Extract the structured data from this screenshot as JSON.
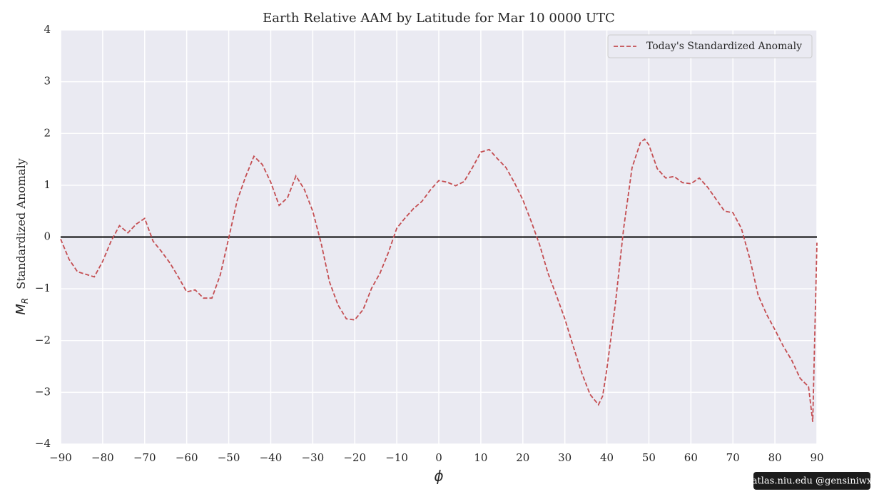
{
  "chart_data": {
    "type": "line",
    "title": "Earth Relative AAM by Latitude for Mar 10 0000 UTC",
    "xlabel": "ϕ",
    "ylabel_symbol": "M",
    "ylabel_subscript": "R",
    "ylabel": "Standardized Anomaly",
    "watermark": "atlas.niu.edu  @gensiniwx",
    "x": [
      -90,
      -88,
      -86,
      -84,
      -82,
      -80,
      -78,
      -76,
      -74,
      -72,
      -70,
      -68,
      -66,
      -64,
      -62,
      -60,
      -58,
      -56,
      -54,
      -52,
      -50,
      -48,
      -46,
      -44,
      -42,
      -40,
      -38,
      -36,
      -34,
      -32,
      -30,
      -28,
      -26,
      -24,
      -22,
      -20,
      -18,
      -16,
      -14,
      -12,
      -10,
      -8,
      -6,
      -4,
      -2,
      0,
      2,
      4,
      6,
      8,
      10,
      12,
      14,
      16,
      18,
      20,
      22,
      24,
      26,
      28,
      30,
      32,
      34,
      36,
      38,
      39,
      40,
      42,
      44,
      46,
      48,
      49,
      50,
      52,
      54,
      56,
      58,
      60,
      62,
      64,
      66,
      68,
      70,
      72,
      74,
      76,
      78,
      80,
      82,
      84,
      86,
      88,
      89,
      90
    ],
    "series": [
      {
        "name": "Today's Standardized Anomaly",
        "color": "#c44e52",
        "dashed": true,
        "values": [
          -0.04,
          -0.43,
          -0.67,
          -0.72,
          -0.77,
          -0.47,
          -0.08,
          0.22,
          0.08,
          0.25,
          0.36,
          -0.08,
          -0.28,
          -0.5,
          -0.77,
          -1.06,
          -1.02,
          -1.18,
          -1.18,
          -0.73,
          -0.02,
          0.7,
          1.16,
          1.56,
          1.4,
          1.06,
          0.61,
          0.76,
          1.18,
          0.92,
          0.5,
          -0.12,
          -0.87,
          -1.31,
          -1.58,
          -1.6,
          -1.4,
          -0.99,
          -0.7,
          -0.3,
          0.17,
          0.37,
          0.55,
          0.69,
          0.91,
          1.09,
          1.06,
          0.99,
          1.07,
          1.34,
          1.64,
          1.69,
          1.51,
          1.34,
          1.05,
          0.72,
          0.3,
          -0.15,
          -0.7,
          -1.13,
          -1.58,
          -2.11,
          -2.62,
          -3.04,
          -3.24,
          -3.07,
          -2.55,
          -1.31,
          0.17,
          1.34,
          1.83,
          1.89,
          1.78,
          1.32,
          1.14,
          1.17,
          1.05,
          1.03,
          1.14,
          0.96,
          0.73,
          0.5,
          0.47,
          0.17,
          -0.41,
          -1.12,
          -1.49,
          -1.79,
          -2.11,
          -2.38,
          -2.73,
          -2.89,
          -3.57,
          -0.11
        ]
      }
    ],
    "hline": 0,
    "hline_color": "#000000",
    "xlim": [
      -90,
      90
    ],
    "ylim": [
      -4,
      4
    ],
    "xticks": [
      {
        "value": -90,
        "label": "−90"
      },
      {
        "value": -80,
        "label": "−80"
      },
      {
        "value": -70,
        "label": "−70"
      },
      {
        "value": -60,
        "label": "−60"
      },
      {
        "value": -50,
        "label": "−50"
      },
      {
        "value": -40,
        "label": "−40"
      },
      {
        "value": -30,
        "label": "−30"
      },
      {
        "value": -20,
        "label": "−20"
      },
      {
        "value": -10,
        "label": "−10"
      },
      0,
      10,
      20,
      30,
      40,
      50,
      60,
      70,
      80,
      90
    ],
    "yticks": [
      {
        "value": -4,
        "label": "−4"
      },
      {
        "value": -3,
        "label": "−3"
      },
      {
        "value": -2,
        "label": "−2"
      },
      {
        "value": -1,
        "label": "−1"
      },
      0,
      1,
      2,
      3,
      4
    ],
    "grid": true,
    "legend": "upper right"
  }
}
